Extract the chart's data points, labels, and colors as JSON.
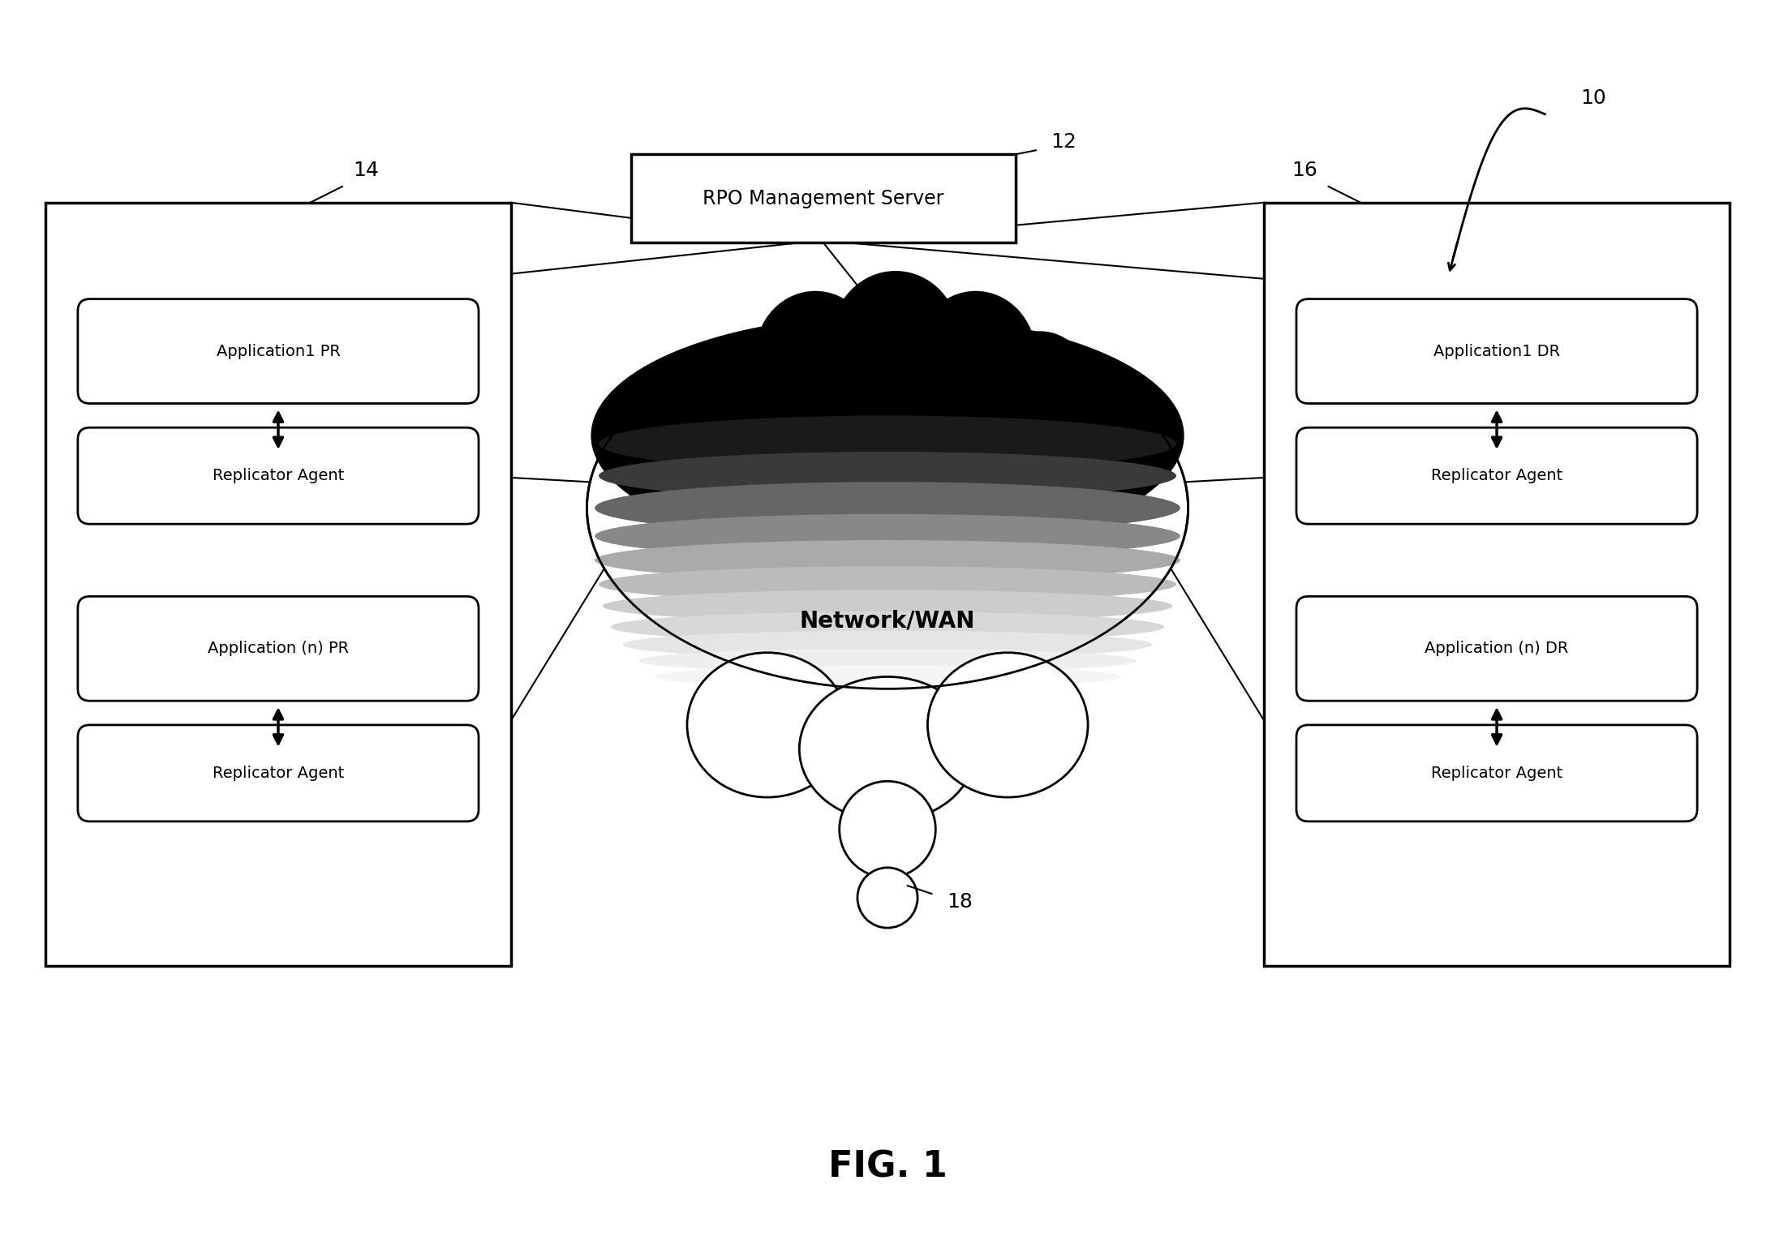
{
  "background_color": "#ffffff",
  "title": "FIG. 1",
  "title_fontsize": 32,
  "fig_label": "10",
  "rpo_server_label": "RPO Management Server",
  "rpo_server_num": "12",
  "left_box_num": "14",
  "right_box_num": "16",
  "cloud_num": "18",
  "left_boxes": [
    {
      "app_label": "Application1 PR",
      "rep_label": "Replicator Agent"
    },
    {
      "app_label": "Application (n) PR",
      "rep_label": "Replicator Agent"
    }
  ],
  "right_boxes": [
    {
      "app_label": "Application1 DR",
      "rep_label": "Replicator Agent"
    },
    {
      "app_label": "Application (n) DR",
      "rep_label": "Replicator Agent"
    }
  ],
  "network_label": "Network/WAN",
  "font_size_box": 14,
  "font_size_network": 20,
  "font_size_label": 18
}
